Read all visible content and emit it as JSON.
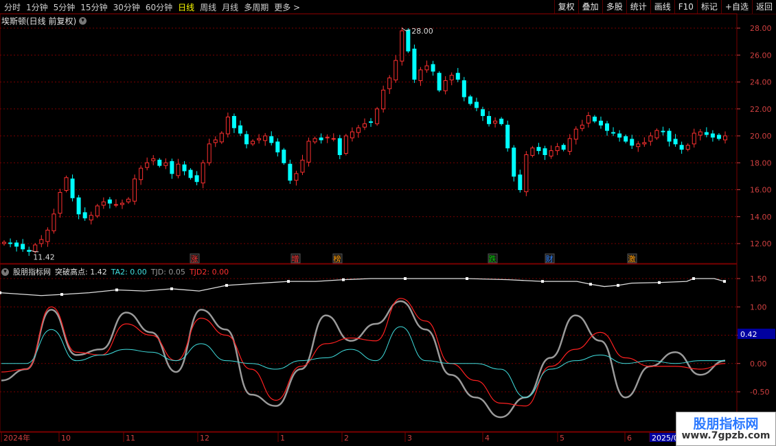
{
  "toolbar": {
    "periods": [
      {
        "label": "分时",
        "active": false
      },
      {
        "label": "1分钟",
        "active": false
      },
      {
        "label": "5分钟",
        "active": false
      },
      {
        "label": "15分钟",
        "active": false
      },
      {
        "label": "30分钟",
        "active": false
      },
      {
        "label": "60分钟",
        "active": false
      },
      {
        "label": "日线",
        "active": true
      },
      {
        "label": "周线",
        "active": false
      },
      {
        "label": "月线",
        "active": false
      },
      {
        "label": "多周期",
        "active": false
      },
      {
        "label": "更多 >",
        "active": false
      }
    ],
    "tools": [
      "复权",
      "叠加",
      "多股",
      "统计",
      "画线",
      "F10",
      "标记",
      "+自选",
      "返回"
    ]
  },
  "main_chart": {
    "title": "埃斯顿(日线 前复权)",
    "price_axis": [
      "28.00",
      "26.00",
      "24.00",
      "22.00",
      "20.00",
      "18.00",
      "16.00",
      "14.00",
      "12.00"
    ],
    "high_label": "28.00",
    "low_label": "11.42",
    "event_tags": [
      {
        "text": "涨",
        "color": "#ff3030"
      },
      {
        "text": "增",
        "color": "#ff3030"
      },
      {
        "text": "榜",
        "color": "#ff9900"
      },
      {
        "text": "跌",
        "color": "#00cc00"
      },
      {
        "text": "财",
        "color": "#2a7fff"
      },
      {
        "text": "激",
        "color": "#ff9900"
      }
    ]
  },
  "indicator": {
    "name": "股朋指标网",
    "items": [
      {
        "label": "突破高点: 1.42",
        "color": "#e0e0e0"
      },
      {
        "label": "TA2: 0.00",
        "color": "#40e0e0"
      },
      {
        "label": "TJD: 0.05",
        "color": "#999999"
      },
      {
        "label": "TJD2: 0.00",
        "color": "#ff3030"
      }
    ],
    "axis": [
      "1.50",
      "1.00",
      "0.50",
      "0.00",
      "-0.50"
    ],
    "current_value": "0.42"
  },
  "date_axis": [
    "2024年",
    "10",
    "11",
    "12",
    "1",
    "2",
    "3",
    "4",
    "5",
    "6",
    "2025/0"
  ],
  "watermark": {
    "line1": "股朋指标网",
    "line2": "www.7gpzb.com"
  },
  "colors": {
    "up": "#ff3030",
    "down": "#00ffff",
    "grid": "#7a0000",
    "axis_text": "#d04040"
  },
  "chart_data": {
    "type": "candlestick",
    "title": "埃斯顿(日线 前复权)",
    "ylim": [
      11,
      28.8
    ],
    "close_series_approx": [
      12.1,
      12.0,
      11.8,
      11.6,
      11.42,
      11.9,
      12.3,
      13.0,
      14.2,
      15.8,
      16.9,
      15.4,
      14.2,
      13.9,
      14.1,
      14.8,
      15.1,
      15.0,
      14.9,
      15.0,
      15.3,
      16.8,
      17.6,
      18.0,
      18.3,
      17.8,
      18.0,
      17.2,
      17.9,
      17.4,
      16.9,
      16.6,
      18.0,
      19.4,
      19.7,
      20.2,
      21.4,
      20.6,
      20.2,
      19.4,
      19.6,
      19.8,
      20.0,
      19.5,
      18.8,
      18.0,
      16.7,
      17.2,
      18.2,
      19.6,
      19.8,
      19.7,
      19.9,
      19.8,
      18.6,
      20.0,
      20.3,
      20.6,
      20.9,
      21.0,
      22.0,
      23.4,
      24.3,
      25.6,
      27.8,
      26.3,
      24.2,
      24.9,
      25.2,
      24.8,
      23.4,
      24.1,
      24.5,
      24.2,
      22.9,
      22.4,
      22.1,
      21.5,
      20.9,
      21.1,
      20.9,
      19.1,
      17.0,
      16.0,
      18.6,
      19.1,
      18.9,
      18.6,
      18.9,
      19.2,
      19.0,
      19.8,
      20.5,
      20.8,
      21.5,
      21.1,
      20.8,
      20.4,
      20.2,
      19.9,
      19.6,
      19.3,
      19.4,
      19.5,
      20.0,
      20.4,
      20.3,
      19.6,
      19.4,
      19.0,
      19.3,
      20.2,
      20.3,
      20.1,
      19.9,
      19.8,
      20.0
    ],
    "indicator_series": {
      "突破高点": "stepped line ~1.20 rising to ~1.50",
      "TA2": [
        0.0,
        0.0,
        0.6,
        0.05,
        0.15,
        0.25,
        0.2,
        0.05,
        0.35,
        0.05,
        0.0,
        -0.1,
        0.05,
        0.1,
        0.25,
        0.05,
        0.65,
        0.05,
        0.0,
        0.0,
        -0.1,
        -0.6,
        -0.1,
        0.05,
        0.15,
        0.0,
        0.05,
        0.0,
        0.05,
        0.05
      ],
      "TJD": [
        -0.3,
        -0.1,
        0.95,
        0.15,
        0.25,
        0.9,
        0.55,
        -0.15,
        0.95,
        0.6,
        -0.55,
        -0.75,
        -0.1,
        0.85,
        0.4,
        0.7,
        1.1,
        0.6,
        -0.2,
        -0.6,
        -0.95,
        -0.6,
        0.1,
        0.85,
        0.4,
        -0.6,
        -0.05,
        0.2,
        -0.2,
        0.05
      ],
      "TJD2": [
        -0.15,
        -0.1,
        1.0,
        0.2,
        0.15,
        0.7,
        0.5,
        0.05,
        0.8,
        0.5,
        -0.1,
        -0.65,
        -0.05,
        0.35,
        0.45,
        0.4,
        1.15,
        0.75,
        0.0,
        -0.3,
        -0.7,
        -0.75,
        -0.05,
        0.25,
        0.55,
        0.1,
        -0.05,
        -0.05,
        -0.1,
        0.0
      ]
    },
    "grid": true
  }
}
